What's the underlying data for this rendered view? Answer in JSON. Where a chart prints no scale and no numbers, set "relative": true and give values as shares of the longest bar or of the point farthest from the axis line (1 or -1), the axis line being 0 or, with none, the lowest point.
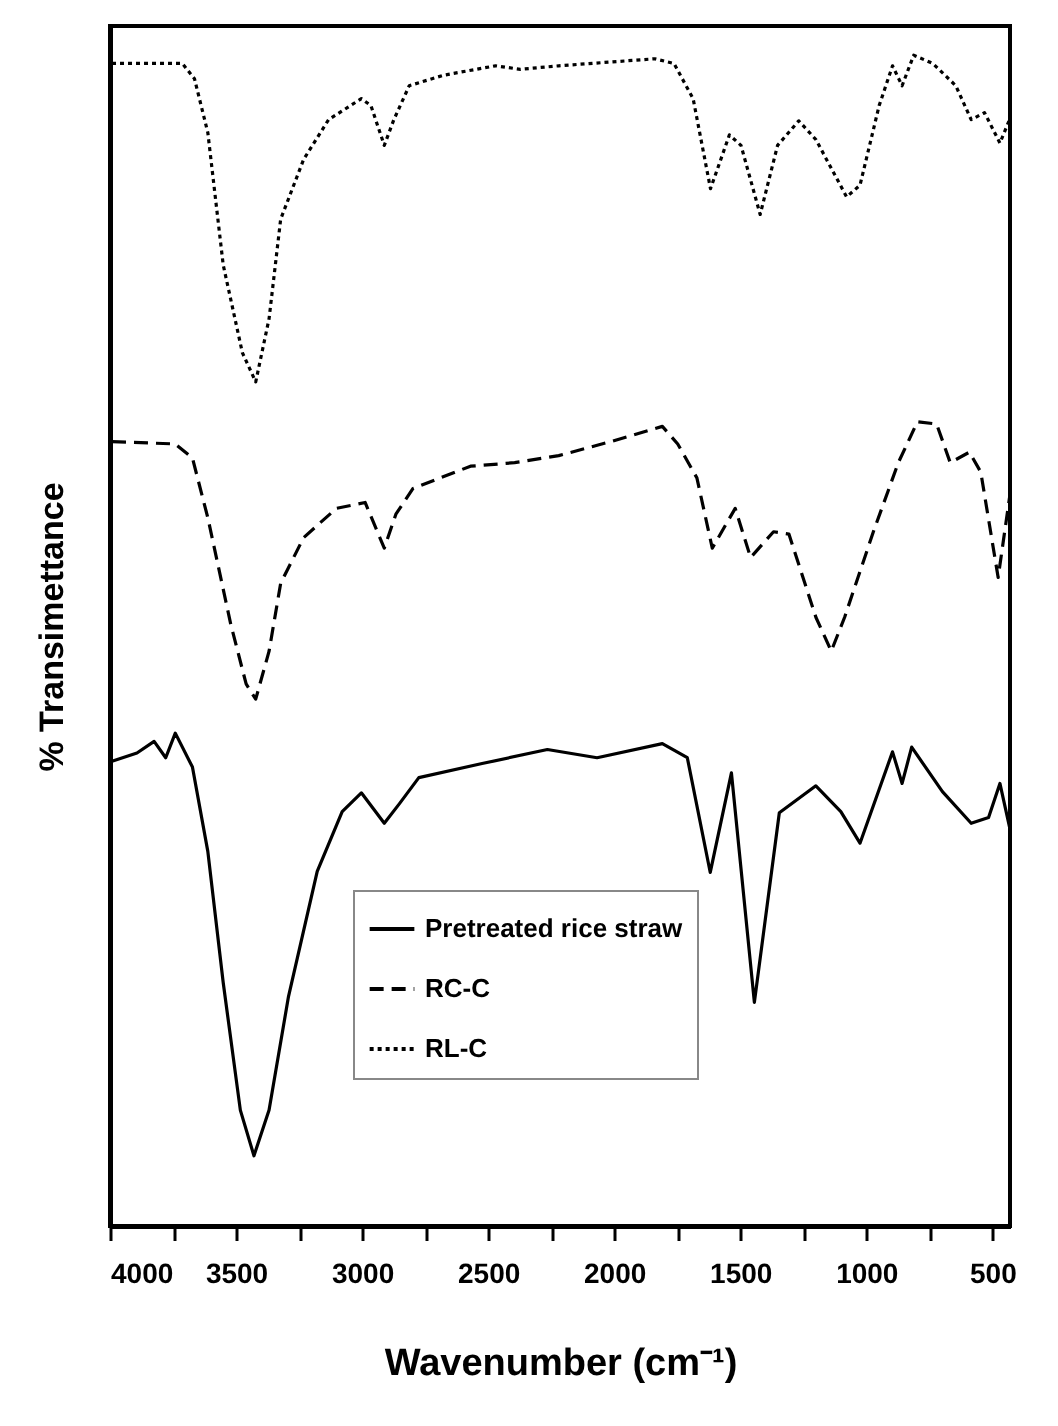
{
  "chart_data": {
    "type": "line",
    "relative": true,
    "xlabel": "Wavenumber (cm⁻¹)",
    "ylabel": "% Transimettance",
    "xlim": [
      4000,
      430
    ],
    "xticks": [
      4000,
      {
        "value": 3750,
        "label": null
      },
      3500,
      {
        "value": 3250,
        "label": null
      },
      3000,
      {
        "value": 2750,
        "label": null
      },
      2500,
      {
        "value": 2250,
        "label": null
      },
      2000,
      {
        "value": 1750,
        "label": null
      },
      1500,
      {
        "value": 1250,
        "label": null
      },
      1000,
      {
        "value": 750,
        "label": null
      },
      500
    ],
    "legend": "bottom",
    "grid": false,
    "marker": "none",
    "series": [
      {
        "name": "Pretreated rice straw",
        "color": "#000000",
        "line_style": "solid",
        "x": [
          3992,
          3893,
          3825,
          3779,
          3741,
          3673,
          3612,
          3551,
          3483,
          3429,
          3369,
          3292,
          3178,
          3079,
          3003,
          2912,
          2851,
          2775,
          2524,
          2265,
          2068,
          1809,
          1710,
          1619,
          1535,
          1444,
          1345,
          1200,
          1101,
          1025,
          896,
          858,
          820,
          698,
          584,
          515,
          470,
          432
        ],
        "values": [
          0.397,
          0.404,
          0.414,
          0.4,
          0.421,
          0.392,
          0.32,
          0.208,
          0.099,
          0.06,
          0.099,
          0.196,
          0.303,
          0.354,
          0.37,
          0.344,
          0.361,
          0.383,
          0.395,
          0.407,
          0.4,
          0.412,
          0.4,
          0.302,
          0.387,
          0.191,
          0.353,
          0.376,
          0.354,
          0.327,
          0.405,
          0.378,
          0.409,
          0.371,
          0.344,
          0.349,
          0.378,
          0.341
        ]
      },
      {
        "name": "RC-C",
        "color": "#000000",
        "line_style": "dashed",
        "x": [
          3992,
          3741,
          3673,
          3612,
          3521,
          3460,
          3422,
          3369,
          3323,
          3232,
          3102,
          2988,
          2912,
          2866,
          2798,
          2570,
          2395,
          2220,
          2014,
          1809,
          1748,
          1672,
          1611,
          1520,
          1459,
          1368,
          1307,
          1200,
          1139,
          1086,
          972,
          873,
          797,
          721,
          667,
          591,
          546,
          477,
          432
        ],
        "values": [
          0.67,
          0.668,
          0.656,
          0.605,
          0.514,
          0.463,
          0.45,
          0.491,
          0.549,
          0.588,
          0.613,
          0.618,
          0.579,
          0.608,
          0.63,
          0.649,
          0.652,
          0.658,
          0.67,
          0.683,
          0.668,
          0.639,
          0.579,
          0.613,
          0.571,
          0.593,
          0.591,
          0.52,
          0.491,
          0.52,
          0.593,
          0.652,
          0.687,
          0.685,
          0.652,
          0.661,
          0.644,
          0.554,
          0.622
        ]
      },
      {
        "name": "RL-C",
        "color": "#000000",
        "line_style": "dotted",
        "x": [
          3992,
          3713,
          3665,
          3612,
          3551,
          3475,
          3422,
          3369,
          3323,
          3232,
          3133,
          3003,
          2965,
          2912,
          2874,
          2813,
          2676,
          2471,
          2372,
          2220,
          1839,
          1763,
          1687,
          1618,
          1543,
          1497,
          1421,
          1352,
          1268,
          1200,
          1078,
          1025,
          949,
          896,
          858,
          812,
          736,
          645,
          584,
          531,
          470,
          432
        ],
        "values": [
          0.993,
          0.993,
          0.98,
          0.934,
          0.821,
          0.746,
          0.721,
          0.775,
          0.86,
          0.911,
          0.945,
          0.963,
          0.957,
          0.923,
          0.945,
          0.974,
          0.983,
          0.991,
          0.988,
          0.991,
          0.997,
          0.993,
          0.963,
          0.886,
          0.932,
          0.923,
          0.864,
          0.923,
          0.944,
          0.928,
          0.879,
          0.889,
          0.957,
          0.991,
          0.974,
          1,
          0.993,
          0.974,
          0.945,
          0.951,
          0.925,
          0.945
        ]
      }
    ]
  }
}
